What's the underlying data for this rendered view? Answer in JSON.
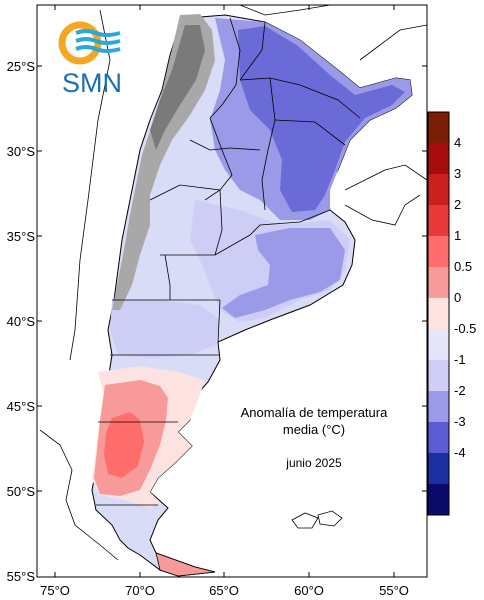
{
  "logo": {
    "text": "SMN"
  },
  "caption": {
    "line1": "Anomalía de temperatura",
    "line2": "media (°C)",
    "date": "junio 2025"
  },
  "axes": {
    "lat_labels": [
      "25°S",
      "30°S",
      "35°S",
      "40°S",
      "45°S",
      "50°S",
      "55°S"
    ],
    "lon_labels": [
      "75°O",
      "70°O",
      "65°O",
      "60°O",
      "55°O"
    ]
  },
  "legend": {
    "labels": [
      "4",
      "3",
      "2",
      "1",
      "0.5",
      "0",
      "-0.5",
      "-1",
      "-2",
      "-3",
      "-4"
    ],
    "colors": [
      "#7a1e06",
      "#a80d0d",
      "#cc1f1f",
      "#e83838",
      "#ff6d6d",
      "#f99a9a",
      "#fde2e2",
      "#e6e6fb",
      "#cdcdf5",
      "#9a9ae8",
      "#5c5cd2",
      "#1b2fa0",
      "#0a0a6a"
    ]
  },
  "map_colors": {
    "ocean": "#ffffff",
    "border": "#000000",
    "andes_relief": "#9c9c9c"
  }
}
